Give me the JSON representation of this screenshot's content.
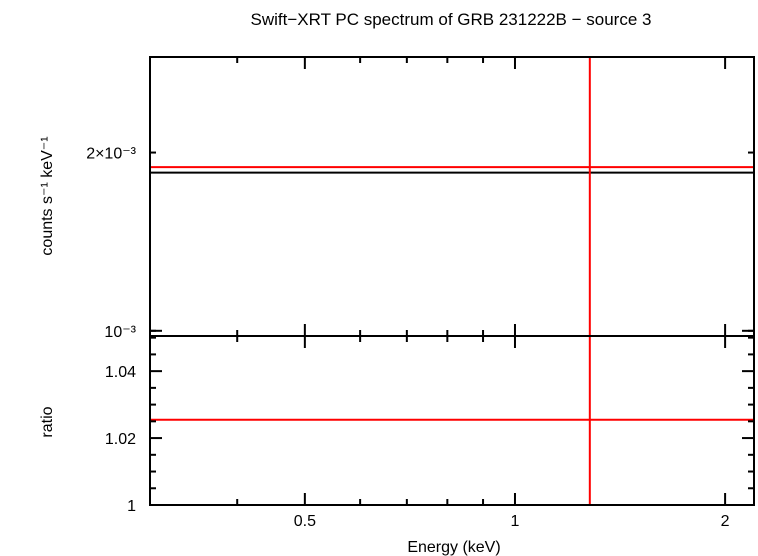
{
  "chart_data": [
    {
      "type": "line",
      "panel": "spectrum",
      "title": "Swift−XRT PC spectrum of GRB 231222B − source 3",
      "xlabel": "",
      "ylabel": "counts s⁻¹ keV⁻¹",
      "x_scale": "log",
      "y_scale": "log",
      "xlim": [
        0.3,
        2.2
      ],
      "ylim": [
        0.00098,
        0.0029
      ],
      "y_ticks": [
        {
          "value": 0.001,
          "label": "10⁻³"
        },
        {
          "value": 0.002,
          "label": "2×10⁻³"
        }
      ],
      "series": [
        {
          "color": "#000000",
          "x": [
            0.3,
            2.2
          ],
          "y": [
            0.00185,
            0.00185
          ]
        },
        {
          "color": "#ff0000",
          "x": [
            0.3,
            2.2
          ],
          "y": [
            0.00189,
            0.00189
          ]
        }
      ],
      "vlines": [
        {
          "x": 1.28,
          "color": "#ff0000"
        }
      ]
    },
    {
      "type": "line",
      "panel": "ratio",
      "xlabel": "Energy (keV)",
      "ylabel": "ratio",
      "x_scale": "log",
      "y_scale": "linear",
      "xlim": [
        0.3,
        2.2
      ],
      "ylim": [
        1.0,
        1.0505
      ],
      "x_ticks": [
        {
          "value": 0.5,
          "label": "0.5"
        },
        {
          "value": 1,
          "label": "1"
        },
        {
          "value": 2,
          "label": "2"
        }
      ],
      "y_ticks": [
        {
          "value": 1.0,
          "label": "1"
        },
        {
          "value": 1.02,
          "label": "1.02"
        },
        {
          "value": 1.04,
          "label": "1.04"
        }
      ],
      "series": [
        {
          "color": "#ff0000",
          "x": [
            0.3,
            2.2
          ],
          "y": [
            1.0255,
            1.0255
          ]
        },
        {
          "color": "#00ff00",
          "x": [
            0.3,
            2.2
          ],
          "y": [
            1.0,
            1.0
          ]
        }
      ],
      "vlines": [
        {
          "x": 1.28,
          "color": "#ff0000"
        }
      ]
    }
  ]
}
